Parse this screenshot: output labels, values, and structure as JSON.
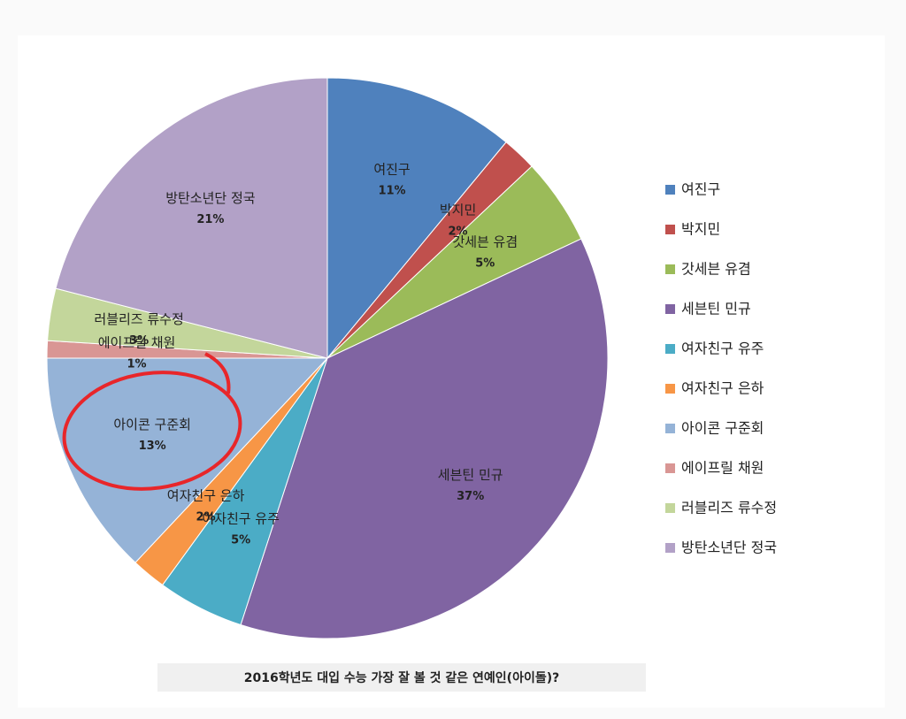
{
  "chart_data": {
    "type": "pie",
    "title": "2016학년도 대입 수능 가장 잘 볼 것 같은 연예인(아이돌)?",
    "categories": [
      "여진구",
      "박지민",
      "갓세븐 유겸",
      "세븐틴 민규",
      "여자친구 유주",
      "여자친구 은하",
      "아이콘 구준회",
      "에이프릴 채원",
      "러블리즈 류수정",
      "방탄소년단 정국"
    ],
    "values": [
      11,
      2,
      5,
      37,
      5,
      2,
      13,
      1,
      3,
      21
    ],
    "value_labels": [
      "11%",
      "2%",
      "5%",
      "37%",
      "5%",
      "2%",
      "13%",
      "1%",
      "3%",
      "21%"
    ],
    "colors": [
      "#4f81bd",
      "#c0504d",
      "#9bbb59",
      "#8064a2",
      "#4bacc6",
      "#f79646",
      "#95b3d7",
      "#d99694",
      "#c3d69b",
      "#b2a1c7"
    ],
    "legend": "right"
  }
}
